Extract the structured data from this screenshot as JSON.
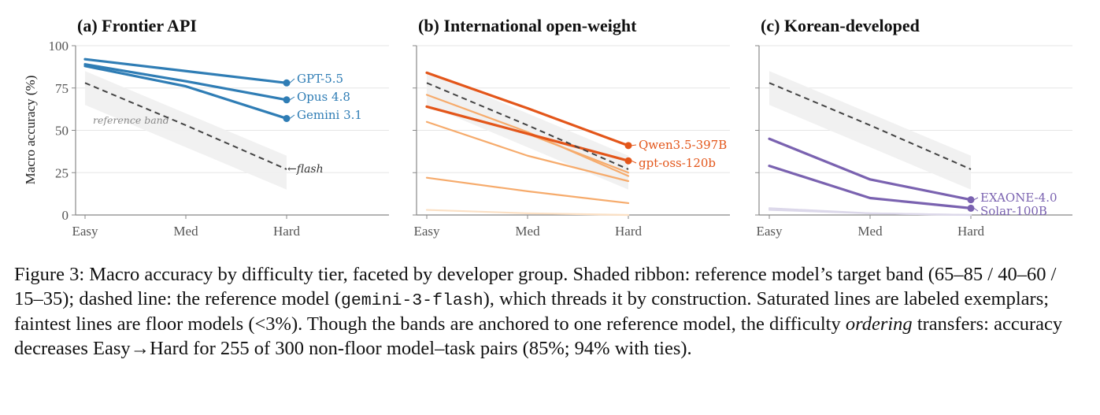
{
  "chart_data": [
    {
      "type": "line",
      "title": "(a) Frontier API",
      "ylabel": "Macro accuracy (%)",
      "xlabel": "",
      "categories": [
        "Easy",
        "Med",
        "Hard"
      ],
      "ylim": [
        0,
        100
      ],
      "yticks": [
        0,
        25,
        50,
        75,
        100
      ],
      "grid": "horizontal",
      "reference": {
        "label": "flash",
        "values": [
          78,
          53,
          27
        ]
      },
      "band": {
        "label": "reference band",
        "lower": [
          65,
          40,
          15
        ],
        "upper": [
          85,
          60,
          35
        ]
      },
      "series": [
        {
          "name": "GPT-5.5",
          "values": [
            92,
            85,
            78
          ],
          "color": "#2f7db5",
          "labeled": true
        },
        {
          "name": "Opus 4.8",
          "values": [
            89,
            79,
            68
          ],
          "color": "#2f7db5",
          "labeled": true
        },
        {
          "name": "Gemini 3.1",
          "values": [
            88,
            76,
            57
          ],
          "color": "#2f7db5",
          "labeled": true
        }
      ]
    },
    {
      "type": "line",
      "title": "(b) International open-weight",
      "ylabel": "",
      "xlabel": "",
      "categories": [
        "Easy",
        "Med",
        "Hard"
      ],
      "ylim": [
        0,
        100
      ],
      "yticks": [
        0,
        25,
        50,
        75,
        100
      ],
      "grid": "horizontal",
      "reference": {
        "label": "",
        "values": [
          78,
          53,
          27
        ]
      },
      "band": {
        "label": "",
        "lower": [
          65,
          40,
          15
        ],
        "upper": [
          85,
          60,
          35
        ]
      },
      "series": [
        {
          "values": [
            3,
            1,
            0
          ],
          "color": "#fbe0c4",
          "labeled": false
        },
        {
          "values": [
            22,
            14,
            7
          ],
          "color": "#f6ab6c",
          "labeled": false
        },
        {
          "values": [
            55,
            35,
            20
          ],
          "color": "#f6ab6c",
          "labeled": false
        },
        {
          "values": [
            71,
            49,
            23
          ],
          "color": "#f6ab6c",
          "labeled": false
        },
        {
          "values": [
            64,
            48,
            25
          ],
          "color": "#f6ab6c",
          "labeled": false
        },
        {
          "name": "gpt-oss-120b",
          "values": [
            64,
            48,
            32
          ],
          "color": "#e3561a",
          "labeled": true
        },
        {
          "name": "Qwen3.5-397B",
          "values": [
            84,
            63,
            41
          ],
          "color": "#e3561a",
          "labeled": true
        }
      ]
    },
    {
      "type": "line",
      "title": "(c) Korean-developed",
      "ylabel": "",
      "xlabel": "",
      "categories": [
        "Easy",
        "Med",
        "Hard"
      ],
      "ylim": [
        0,
        100
      ],
      "yticks": [
        0,
        25,
        50,
        75,
        100
      ],
      "grid": "horizontal",
      "reference": {
        "label": "",
        "values": [
          78,
          53,
          27
        ]
      },
      "band": {
        "label": "",
        "lower": [
          65,
          40,
          15
        ],
        "upper": [
          85,
          60,
          35
        ]
      },
      "series": [
        {
          "values": [
            4,
            1,
            0
          ],
          "color": "#dcd8ea",
          "labeled": false
        },
        {
          "values": [
            3,
            1,
            0
          ],
          "color": "#dcd8ea",
          "labeled": false
        },
        {
          "name": "EXAONE-4.0",
          "values": [
            45,
            21,
            9
          ],
          "color": "#7a62b0",
          "labeled": true
        },
        {
          "name": "Solar-100B",
          "values": [
            29,
            10,
            4
          ],
          "color": "#7a62b0",
          "labeled": true
        }
      ]
    }
  ],
  "caption": {
    "p1": "Figure 3: Macro accuracy by difficulty tier, faceted by developer group. Shaded ribbon: reference model’s target band (65–85 / 40–60 / 15–35); dashed line: the reference model (",
    "code": "gemini-3-flash",
    "p2": "), which threads it by construction. Saturated lines are labeled exemplars; faintest lines are floor models (<3%). Though the bands are anchored to one reference model, the difficulty ",
    "em": "ordering",
    "p3": " transfers: accuracy decreases Easy→Hard for 255 of 300 non-floor model–task pairs (85%; 94% with ties)."
  }
}
